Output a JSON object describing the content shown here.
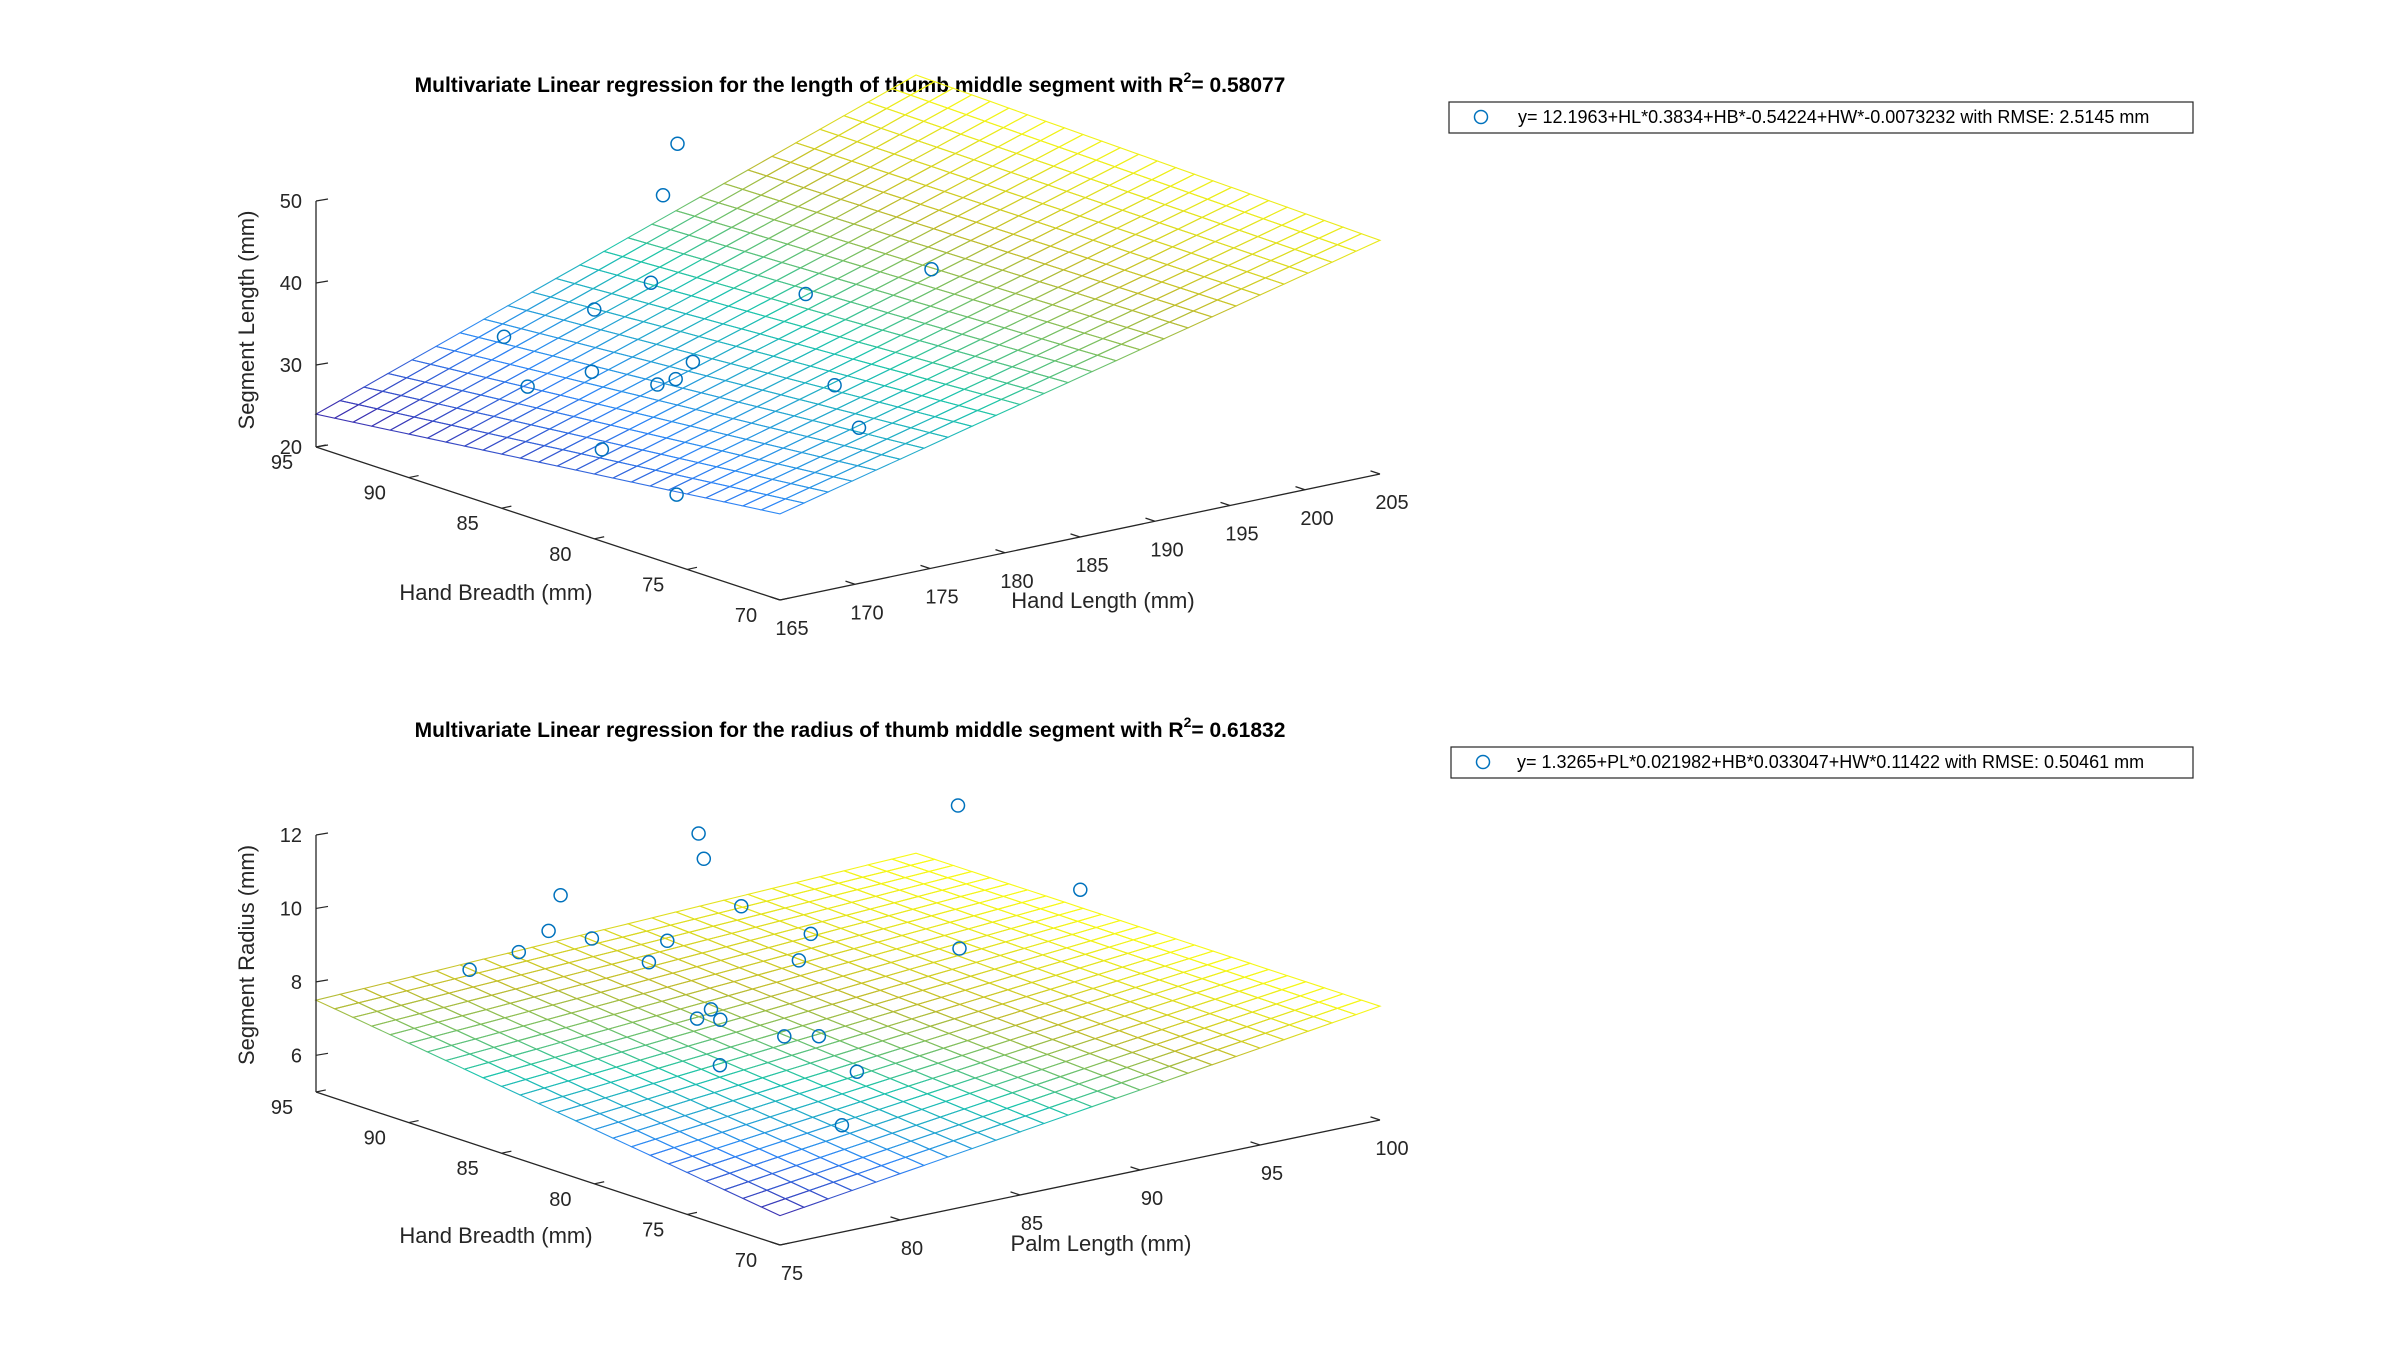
{
  "chart_data": [
    {
      "type": "scatter3d",
      "title": "Multivariate Linear regression for the length of thumb middle segment with R",
      "title_sup": "2",
      "title_suffix": "= 0.58077",
      "xlabel": "Hand Length (mm)",
      "ylabel": "Hand Breadth (mm)",
      "zlabel": "Segment Length (mm)",
      "xlim": [
        165,
        205
      ],
      "ylim": [
        70,
        95
      ],
      "zlim": [
        20,
        50
      ],
      "xticks": [
        "165",
        "170",
        "175",
        "180",
        "185",
        "190",
        "195",
        "200",
        "205"
      ],
      "yticks": [
        "70",
        "75",
        "80",
        "85",
        "90",
        "95"
      ],
      "zticks": [
        "20",
        "30",
        "40",
        "50"
      ],
      "legend": "y= 12.1963+HL*0.3834+HB*-0.54224+HW*-0.0073232 with RMSE: 2.5145 mm",
      "legend_position": "top-right",
      "surface": "fitted regression plane, mesh",
      "colormap": [
        "#3e26a8",
        "#2e87f7",
        "#1dc5ab",
        "#c1bc2d",
        "#f9fb15"
      ],
      "marker_color": "#0072bd",
      "points": [
        {
          "x": 174.9,
          "y": 91.6,
          "z": 26.1
        },
        {
          "x": 172.8,
          "y": 85.9,
          "z": 23.5
        },
        {
          "x": 173.2,
          "y": 82.2,
          "z": 20.6
        },
        {
          "x": 173.2,
          "y": 91.5,
          "z": 32.9
        },
        {
          "x": 175.1,
          "y": 88.3,
          "z": 30.3
        },
        {
          "x": 176.5,
          "y": 89.3,
          "z": 36.6
        },
        {
          "x": 176.5,
          "y": 85.9,
          "z": 30.0
        },
        {
          "x": 177.1,
          "y": 85.4,
          "z": 30.8
        },
        {
          "x": 178.0,
          "y": 85.2,
          "z": 32.7
        },
        {
          "x": 180.4,
          "y": 89.4,
          "z": 38.3
        },
        {
          "x": 184.3,
          "y": 91.9,
          "z": 45.6
        },
        {
          "x": 186.5,
          "y": 92.9,
          "z": 50.3
        },
        {
          "x": 181.9,
          "y": 79.4,
          "z": 27.5
        },
        {
          "x": 182.0,
          "y": 80.8,
          "z": 31.6
        },
        {
          "x": 184.9,
          "y": 84.7,
          "z": 38.7
        },
        {
          "x": 194.9,
          "y": 86.0,
          "z": 36.9
        }
      ]
    },
    {
      "type": "scatter3d",
      "title": "Multivariate Linear regression for the radius of thumb middle segment with R",
      "title_sup": "2",
      "title_suffix": "= 0.61832",
      "xlabel": "Palm Length (mm)",
      "ylabel": "Hand Breadth (mm)",
      "zlabel": "Segment Radius (mm)",
      "xlim": [
        75,
        100
      ],
      "ylim": [
        70,
        95
      ],
      "zlim": [
        5,
        12
      ],
      "xticks": [
        "75",
        "80",
        "85",
        "90",
        "95",
        "100"
      ],
      "yticks": [
        "70",
        "75",
        "80",
        "85",
        "90",
        "95"
      ],
      "zticks": [
        "6",
        "8",
        "10",
        "12"
      ],
      "legend": "y= 1.3265+PL*0.021982+HB*0.033047+HW*0.11422 with RMSE: 0.50461 mm",
      "legend_position": "top-right",
      "surface": "fitted regression plane, mesh",
      "colormap": [
        "#3e26a8",
        "#2e87f7",
        "#1dc5ab",
        "#c1bc2d",
        "#f9fb15"
      ],
      "marker_color": "#0072bd",
      "points": [
        {
          "x": 77.3,
          "y": 89.7,
          "z": 8.9
        },
        {
          "x": 78.5,
          "y": 88.6,
          "z": 9.4
        },
        {
          "x": 79.2,
          "y": 87.9,
          "z": 10.0
        },
        {
          "x": 79.7,
          "y": 87.9,
          "z": 10.9
        },
        {
          "x": 80.0,
          "y": 86.6,
          "z": 9.9
        },
        {
          "x": 82.1,
          "y": 82.9,
          "z": 8.3
        },
        {
          "x": 81.7,
          "y": 81.9,
          "z": 7.0
        },
        {
          "x": 81.6,
          "y": 83.0,
          "z": 8.1
        },
        {
          "x": 82.1,
          "y": 82.4,
          "z": 8.1
        },
        {
          "x": 81.6,
          "y": 85.6,
          "z": 9.2
        },
        {
          "x": 82.6,
          "y": 85.9,
          "z": 9.6
        },
        {
          "x": 84.6,
          "y": 86.8,
          "z": 12.1
        },
        {
          "x": 83.3,
          "y": 80.5,
          "z": 7.8
        },
        {
          "x": 84.2,
          "y": 79.8,
          "z": 7.8
        },
        {
          "x": 84.6,
          "y": 84.5,
          "z": 10.5
        },
        {
          "x": 84.2,
          "y": 86.0,
          "z": 11.6
        },
        {
          "x": 85.3,
          "y": 82.3,
          "z": 9.3
        },
        {
          "x": 86.8,
          "y": 83.6,
          "z": 9.6
        },
        {
          "x": 84.7,
          "y": 78.4,
          "z": 7.0
        },
        {
          "x": 83.3,
          "y": 77.4,
          "z": 5.9
        },
        {
          "x": 90.6,
          "y": 80.5,
          "z": 9.2
        },
        {
          "x": 95.1,
          "y": 86.4,
          "z": 11.5
        },
        {
          "x": 97.1,
          "y": 82.4,
          "z": 9.6
        }
      ]
    }
  ]
}
